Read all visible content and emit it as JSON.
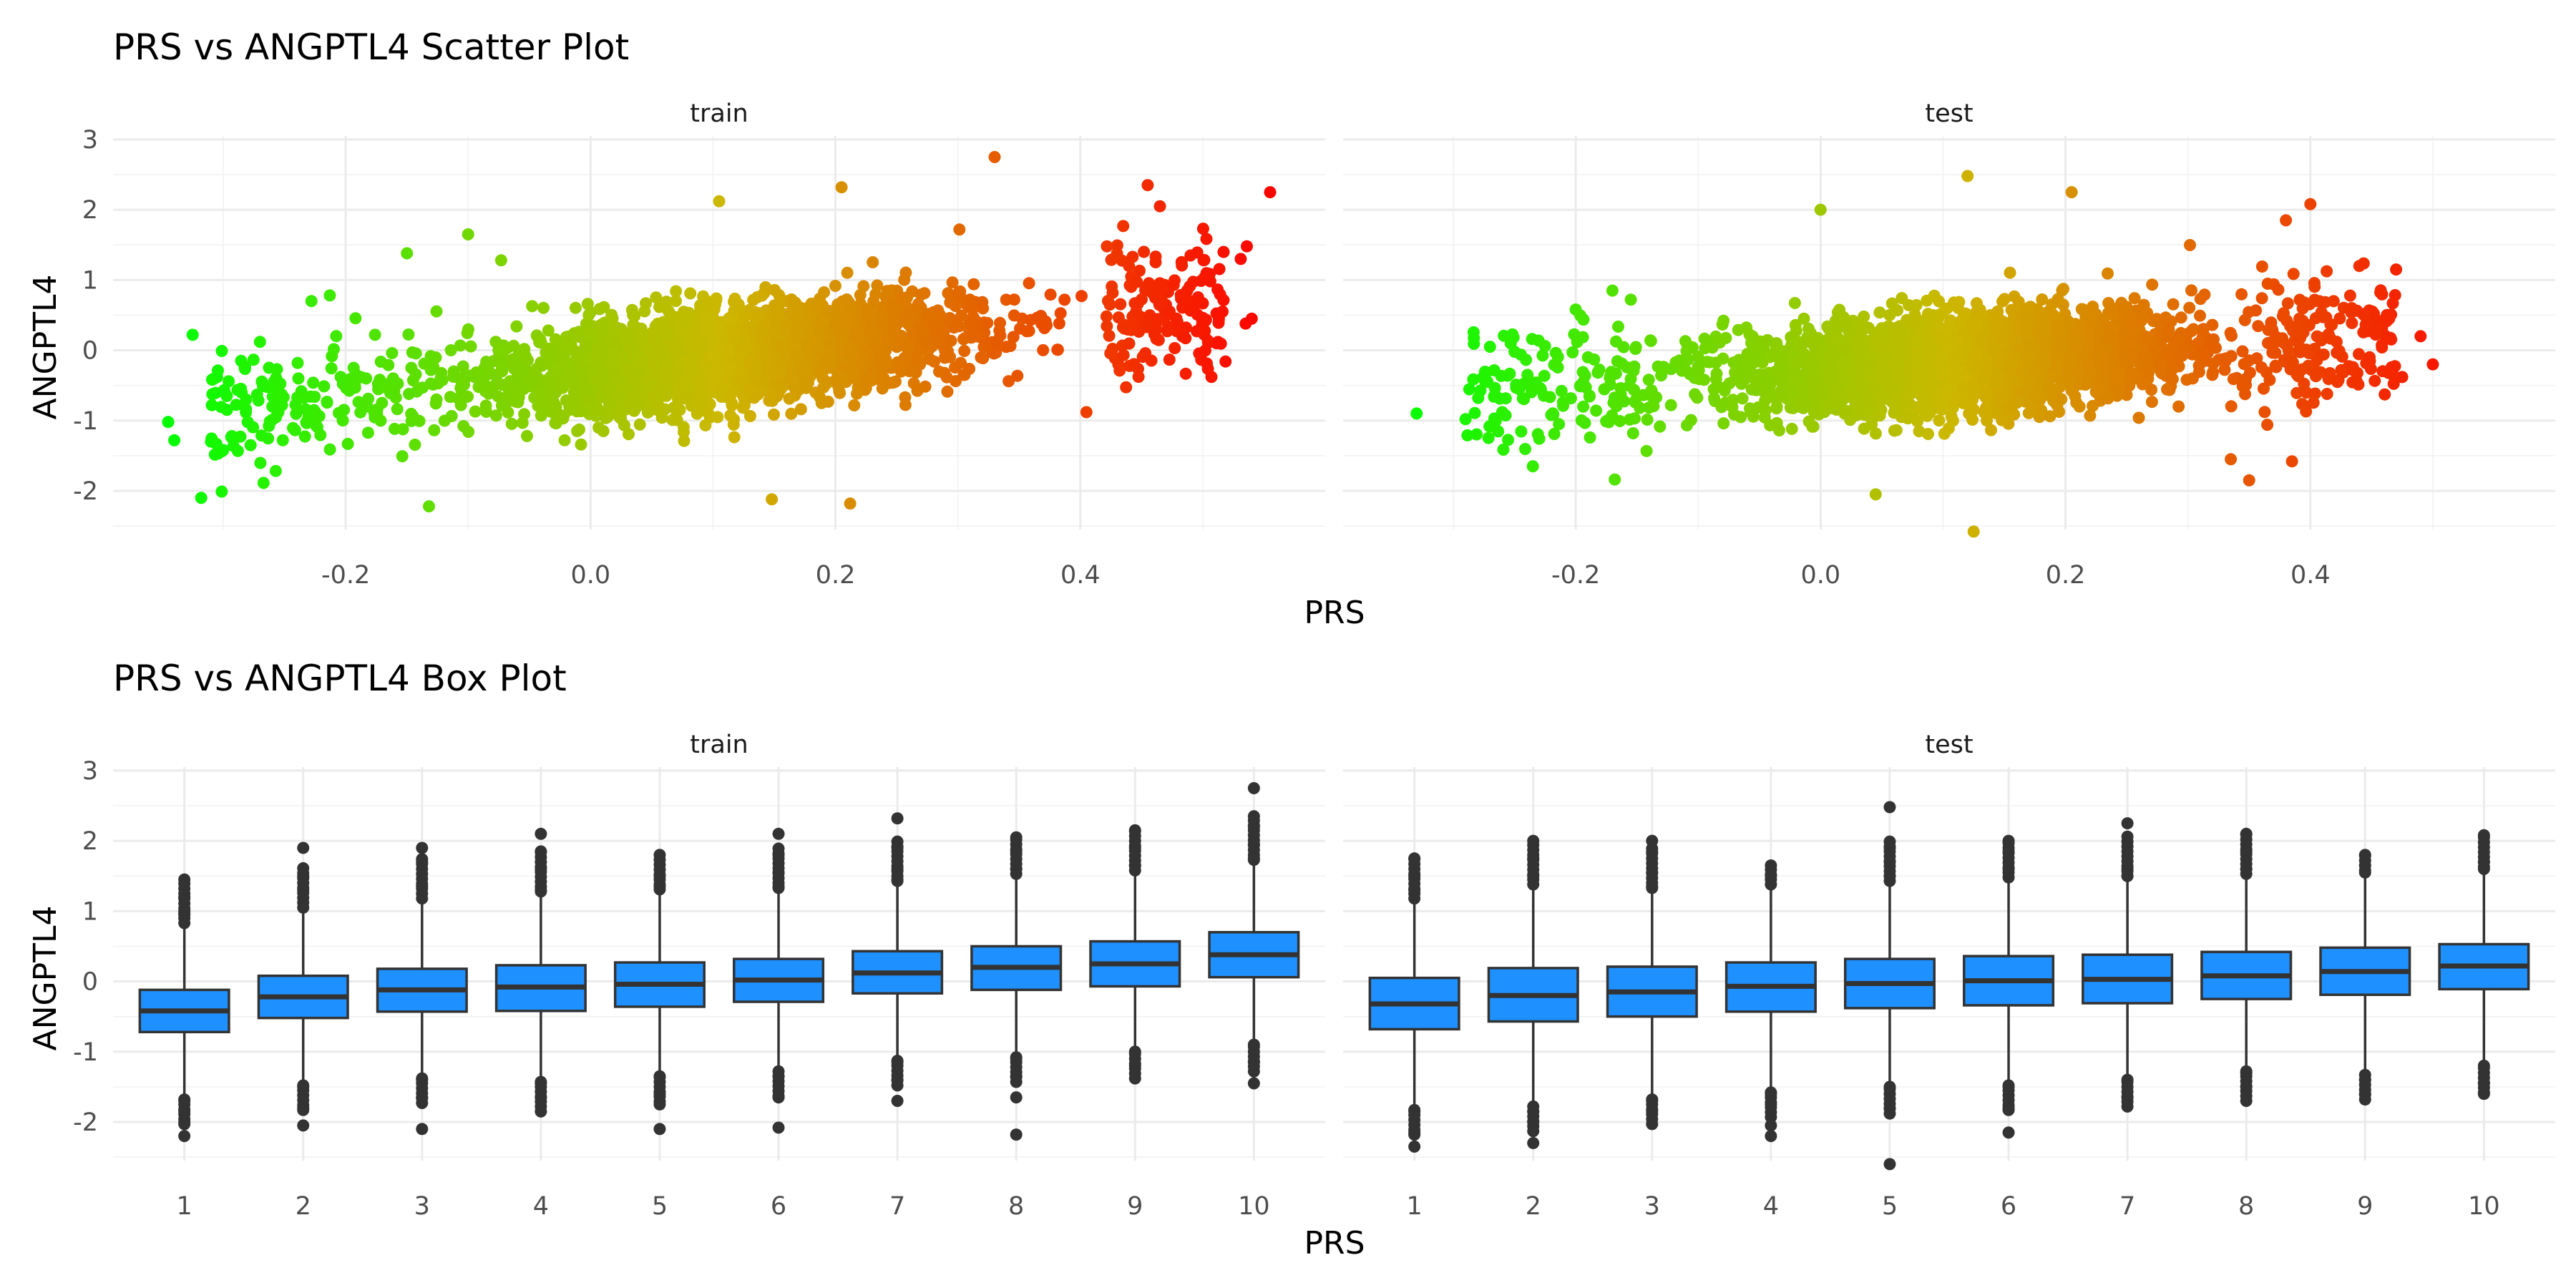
{
  "chart_data": [
    {
      "type": "scatter",
      "title": "PRS vs ANGPTL4 Scatter Plot",
      "xlabel": "PRS",
      "ylabel": "ANGPTL4",
      "facets": [
        "train",
        "test"
      ],
      "xlim": [
        -0.39,
        0.6
      ],
      "ylim": [
        -2.55,
        3.05
      ],
      "xticks": [
        -0.2,
        0.0,
        0.2,
        0.4
      ],
      "xtick_labels": [
        "-0.2",
        "0.0",
        "0.2",
        "0.4"
      ],
      "yticks": [
        -2,
        -1,
        0,
        1,
        2,
        3
      ],
      "ytick_labels": [
        "-2",
        "-1",
        "0",
        "1",
        "2",
        "3"
      ],
      "color_gradient": {
        "low": "#00ff00",
        "mid": "#ccb800",
        "high": "#ff0000"
      },
      "grid": true,
      "legend": "none",
      "series": [
        {
          "facet": "train",
          "summary": {
            "prs_range": [
              -0.345,
              0.555
            ],
            "slope": 1.85,
            "intercept": -0.3,
            "noise_sd": 0.55
          },
          "points": [
            [
              -0.345,
              -1.02
            ],
            [
              -0.34,
              -1.28
            ],
            [
              -0.325,
              0.22
            ],
            [
              -0.318,
              -2.1
            ],
            [
              -0.31,
              -1.3
            ],
            [
              -0.305,
              -0.38
            ],
            [
              -0.3,
              -1.42
            ],
            [
              -0.285,
              -0.6
            ],
            [
              -0.27,
              0.12
            ],
            [
              -0.255,
              -0.88
            ],
            [
              -0.228,
              0.7
            ],
            [
              -0.213,
              0.78
            ],
            [
              -0.198,
              -0.45
            ],
            [
              -0.15,
              1.38
            ],
            [
              -0.132,
              -2.22
            ],
            [
              -0.1,
              1.65
            ],
            [
              -0.073,
              1.28
            ],
            [
              0.105,
              2.12
            ],
            [
              0.148,
              -2.12
            ],
            [
              0.205,
              2.32
            ],
            [
              0.212,
              -2.18
            ],
            [
              0.33,
              2.75
            ],
            [
              0.405,
              -0.88
            ],
            [
              0.455,
              2.35
            ],
            [
              0.465,
              2.05
            ],
            [
              0.49,
              1.35
            ],
            [
              0.517,
              1.4
            ],
            [
              0.531,
              1.3
            ],
            [
              0.535,
              0.38
            ],
            [
              0.536,
              1.48
            ],
            [
              0.54,
              0.45
            ],
            [
              0.555,
              2.25
            ]
          ]
        },
        {
          "facet": "test",
          "summary": {
            "prs_range": [
              -0.33,
              0.5
            ],
            "slope": 1.05,
            "intercept": -0.28,
            "noise_sd": 0.55
          },
          "points": [
            [
              -0.33,
              -0.9
            ],
            [
              -0.29,
              -0.98
            ],
            [
              -0.27,
              0.05
            ],
            [
              -0.26,
              -0.88
            ],
            [
              -0.25,
              -0.02
            ],
            [
              -0.235,
              -1.65
            ],
            [
              -0.22,
              -0.92
            ],
            [
              -0.2,
              0.58
            ],
            [
              -0.19,
              -0.1
            ],
            [
              -0.17,
              0.85
            ],
            [
              -0.155,
              0.72
            ],
            [
              0.0,
              2.0
            ],
            [
              0.045,
              -2.05
            ],
            [
              0.12,
              2.48
            ],
            [
              0.125,
              -2.58
            ],
            [
              0.205,
              2.25
            ],
            [
              0.335,
              -1.55
            ],
            [
              0.35,
              -1.85
            ],
            [
              0.38,
              1.85
            ],
            [
              0.385,
              -1.58
            ],
            [
              0.4,
              2.08
            ],
            [
              0.44,
              1.2
            ],
            [
              0.47,
              1.15
            ],
            [
              0.475,
              -0.38
            ],
            [
              0.49,
              0.2
            ],
            [
              0.5,
              -0.2
            ]
          ]
        }
      ]
    },
    {
      "type": "box",
      "title": "PRS vs ANGPTL4 Box Plot",
      "xlabel": "PRS",
      "ylabel": "ANGPTL4",
      "facets": [
        "train",
        "test"
      ],
      "categories": [
        "1",
        "2",
        "3",
        "4",
        "5",
        "6",
        "7",
        "8",
        "9",
        "10"
      ],
      "ylim": [
        -2.55,
        3.05
      ],
      "yticks": [
        -2,
        -1,
        0,
        1,
        2,
        3
      ],
      "ytick_labels": [
        "-2",
        "-1",
        "0",
        "1",
        "2",
        "3"
      ],
      "box_fill": "#1e90ff",
      "box_stroke": "#333333",
      "grid": true,
      "series": [
        {
          "facet": "train",
          "boxes": [
            {
              "q1": -0.72,
              "median": -0.42,
              "q3": -0.12,
              "lower": -1.6,
              "upper": 0.75,
              "outliers": [
                1.45,
                1.2,
                1.0,
                0.95,
                -1.7,
                -1.85,
                -2.0,
                -2.2
              ]
            },
            {
              "q1": -0.52,
              "median": -0.22,
              "q3": 0.08,
              "lower": -1.4,
              "upper": 0.97,
              "outliers": [
                1.9,
                1.5,
                1.3,
                -1.5,
                -1.8,
                -2.05
              ]
            },
            {
              "q1": -0.43,
              "median": -0.12,
              "q3": 0.18,
              "lower": -1.3,
              "upper": 1.1,
              "outliers": [
                1.9,
                1.7,
                1.35,
                -1.4,
                -1.65,
                -2.1
              ]
            },
            {
              "q1": -0.42,
              "median": -0.08,
              "q3": 0.23,
              "lower": -1.35,
              "upper": 1.2,
              "outliers": [
                2.1,
                1.85,
                1.6,
                1.3,
                -1.45,
                -1.65,
                -1.85
              ]
            },
            {
              "q1": -0.36,
              "median": -0.04,
              "q3": 0.27,
              "lower": -1.28,
              "upper": 1.23,
              "outliers": [
                1.8,
                1.5,
                1.35,
                -1.35,
                -1.6,
                -1.75,
                -2.1
              ]
            },
            {
              "q1": -0.29,
              "median": 0.02,
              "q3": 0.32,
              "lower": -1.2,
              "upper": 1.25,
              "outliers": [
                2.1,
                1.8,
                1.55,
                1.35,
                -1.35,
                -1.65,
                -2.08
              ]
            },
            {
              "q1": -0.17,
              "median": 0.12,
              "q3": 0.43,
              "lower": -1.05,
              "upper": 1.35,
              "outliers": [
                2.32,
                1.9,
                1.6,
                1.45,
                -1.15,
                -1.4,
                -1.7
              ]
            },
            {
              "q1": -0.12,
              "median": 0.2,
              "q3": 0.5,
              "lower": -1.0,
              "upper": 1.45,
              "outliers": [
                2.05,
                1.85,
                1.6,
                -1.1,
                -1.35,
                -1.65,
                -2.18
              ]
            },
            {
              "q1": -0.07,
              "median": 0.25,
              "q3": 0.57,
              "lower": -0.95,
              "upper": 1.5,
              "outliers": [
                2.15,
                1.9,
                1.65,
                -1.0,
                -1.2
              ]
            },
            {
              "q1": 0.06,
              "median": 0.38,
              "q3": 0.7,
              "lower": -0.85,
              "upper": 1.65,
              "outliers": [
                2.75,
                2.35,
                2.2,
                1.95,
                1.75,
                -0.9,
                -1.15,
                -1.45
              ]
            }
          ]
        },
        {
          "facet": "test",
          "boxes": [
            {
              "q1": -0.68,
              "median": -0.32,
              "q3": 0.05,
              "lower": -1.75,
              "upper": 1.1,
              "outliers": [
                1.75,
                1.5,
                1.3,
                -1.85,
                -2.15,
                -2.35
              ]
            },
            {
              "q1": -0.57,
              "median": -0.2,
              "q3": 0.19,
              "lower": -1.7,
              "upper": 1.3,
              "outliers": [
                2.0,
                1.75,
                1.5,
                -1.85,
                -2.0,
                -2.3
              ]
            },
            {
              "q1": -0.5,
              "median": -0.15,
              "q3": 0.21,
              "lower": -1.6,
              "upper": 1.25,
              "outliers": [
                2.0,
                1.85,
                1.55,
                1.35,
                -1.7,
                -1.85
              ]
            },
            {
              "q1": -0.43,
              "median": -0.07,
              "q3": 0.27,
              "lower": -1.5,
              "upper": 1.3,
              "outliers": [
                1.65,
                1.5,
                -1.6,
                -1.75,
                -2.05,
                -2.2
              ]
            },
            {
              "q1": -0.38,
              "median": -0.03,
              "q3": 0.32,
              "lower": -1.45,
              "upper": 1.35,
              "outliers": [
                2.48,
                1.9,
                1.7,
                1.5,
                -1.5,
                -1.8,
                -2.6
              ]
            },
            {
              "q1": -0.34,
              "median": 0.01,
              "q3": 0.36,
              "lower": -1.4,
              "upper": 1.4,
              "outliers": [
                2.0,
                1.85,
                1.6,
                -1.5,
                -1.8,
                -2.15
              ]
            },
            {
              "q1": -0.31,
              "median": 0.03,
              "q3": 0.38,
              "lower": -1.35,
              "upper": 1.42,
              "outliers": [
                2.25,
                1.6,
                1.5,
                -1.4,
                -1.65
              ]
            },
            {
              "q1": -0.25,
              "median": 0.08,
              "q3": 0.42,
              "lower": -1.2,
              "upper": 1.45,
              "outliers": [
                2.1,
                1.85,
                1.6,
                -1.3,
                -1.5,
                -1.7
              ]
            },
            {
              "q1": -0.19,
              "median": 0.14,
              "q3": 0.48,
              "lower": -1.25,
              "upper": 1.5,
              "outliers": [
                1.8,
                1.55,
                -1.4,
                -1.6
              ]
            },
            {
              "q1": -0.11,
              "median": 0.22,
              "q3": 0.53,
              "lower": -1.15,
              "upper": 1.55,
              "outliers": [
                2.08,
                1.7,
                1.6,
                -1.2,
                -1.45,
                -1.6
              ]
            }
          ]
        }
      ]
    }
  ]
}
